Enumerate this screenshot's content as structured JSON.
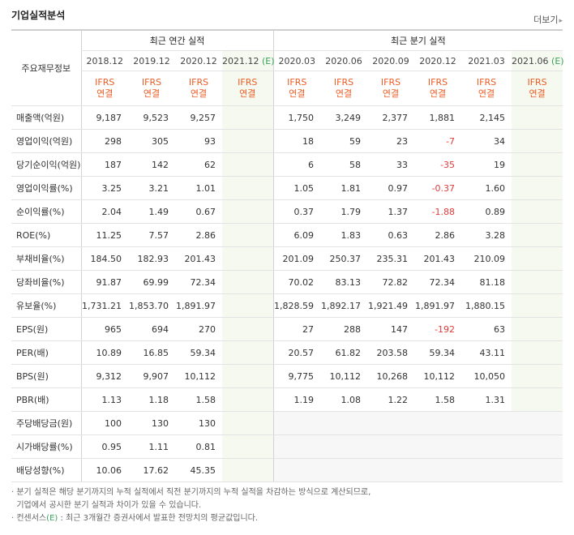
{
  "title": "기업실적분석",
  "more_label": "더보기",
  "header": {
    "row_label": "주요재무정보",
    "annual_title": "최근 연간 실적",
    "quarter_title": "최근 분기 실적",
    "est_mark": "(E)",
    "ifrs_line1": "IFRS",
    "ifrs_line2": "연결",
    "annual_periods": [
      "2018.12",
      "2019.12",
      "2020.12",
      "2021.12"
    ],
    "quarter_periods": [
      "2020.03",
      "2020.06",
      "2020.09",
      "2020.12",
      "2021.03",
      "2021.06"
    ]
  },
  "rows": [
    {
      "label": "매출액(억원)",
      "annual": [
        "9,187",
        "9,523",
        "9,257",
        ""
      ],
      "quarter": [
        "1,750",
        "3,249",
        "2,377",
        "1,881",
        "2,145",
        ""
      ]
    },
    {
      "label": "영업이익(억원)",
      "annual": [
        "298",
        "305",
        "93",
        ""
      ],
      "quarter": [
        "18",
        "59",
        "23",
        "-7",
        "34",
        ""
      ]
    },
    {
      "label": "당기순이익(억원)",
      "annual": [
        "187",
        "142",
        "62",
        ""
      ],
      "quarter": [
        "6",
        "58",
        "33",
        "-35",
        "19",
        ""
      ]
    },
    {
      "label": "영업이익률(%)",
      "annual": [
        "3.25",
        "3.21",
        "1.01",
        ""
      ],
      "quarter": [
        "1.05",
        "1.81",
        "0.97",
        "-0.37",
        "1.60",
        ""
      ]
    },
    {
      "label": "순이익률(%)",
      "annual": [
        "2.04",
        "1.49",
        "0.67",
        ""
      ],
      "quarter": [
        "0.37",
        "1.79",
        "1.37",
        "-1.88",
        "0.89",
        ""
      ]
    },
    {
      "label": "ROE(%)",
      "annual": [
        "11.25",
        "7.57",
        "2.86",
        ""
      ],
      "quarter": [
        "6.09",
        "1.83",
        "0.63",
        "2.86",
        "3.28",
        ""
      ]
    },
    {
      "label": "부채비율(%)",
      "annual": [
        "184.50",
        "182.93",
        "201.43",
        ""
      ],
      "quarter": [
        "201.09",
        "250.37",
        "235.31",
        "201.43",
        "210.09",
        ""
      ]
    },
    {
      "label": "당좌비율(%)",
      "annual": [
        "91.87",
        "69.99",
        "72.34",
        ""
      ],
      "quarter": [
        "70.02",
        "83.13",
        "72.82",
        "72.34",
        "81.18",
        ""
      ]
    },
    {
      "label": "유보율(%)",
      "annual": [
        "1,731.21",
        "1,853.70",
        "1,891.97",
        ""
      ],
      "quarter": [
        "1,828.59",
        "1,892.17",
        "1,921.49",
        "1,891.97",
        "1,880.15",
        ""
      ]
    },
    {
      "label": "EPS(원)",
      "annual": [
        "965",
        "694",
        "270",
        ""
      ],
      "quarter": [
        "27",
        "288",
        "147",
        "-192",
        "63",
        ""
      ]
    },
    {
      "label": "PER(배)",
      "annual": [
        "10.89",
        "16.85",
        "59.34",
        ""
      ],
      "quarter": [
        "20.57",
        "61.82",
        "203.58",
        "59.34",
        "43.11",
        ""
      ]
    },
    {
      "label": "BPS(원)",
      "annual": [
        "9,312",
        "9,907",
        "10,112",
        ""
      ],
      "quarter": [
        "9,775",
        "10,112",
        "10,268",
        "10,112",
        "10,050",
        ""
      ]
    },
    {
      "label": "PBR(배)",
      "annual": [
        "1.13",
        "1.18",
        "1.58",
        ""
      ],
      "quarter": [
        "1.19",
        "1.08",
        "1.22",
        "1.58",
        "1.31",
        ""
      ]
    },
    {
      "label": "주당배당금(원)",
      "annual": [
        "100",
        "130",
        "130",
        ""
      ],
      "quarter": [
        "",
        "",
        "",
        "",
        "",
        ""
      ]
    },
    {
      "label": "시가배당률(%)",
      "annual": [
        "0.95",
        "1.11",
        "0.81",
        ""
      ],
      "quarter": [
        "",
        "",
        "",
        "",
        "",
        ""
      ]
    },
    {
      "label": "배당성향(%)",
      "annual": [
        "10.06",
        "17.62",
        "45.35",
        ""
      ],
      "quarter": [
        "",
        "",
        "",
        "",
        "",
        ""
      ]
    }
  ],
  "notes": {
    "line1": "분기 실적은 해당 분기까지의 누적 실적에서 직전 분기까지의 누적 실적을 차감하는 방식으로 계산되므로,",
    "line2": "기업에서 공시한 분기 실적과 차이가 있을 수 있습니다.",
    "line3_prefix": "컨센서스",
    "line3_mark": "(E)",
    "line3_rest": " : 최근 3개월간 증권사에서 발표한 전망치의 평균값입니다."
  },
  "colors": {
    "negative": "#e03b3b",
    "ifrs": "#ec5d25",
    "estimate_mark": "#3aa35b",
    "estimate_bg": "#f5f9ef"
  }
}
